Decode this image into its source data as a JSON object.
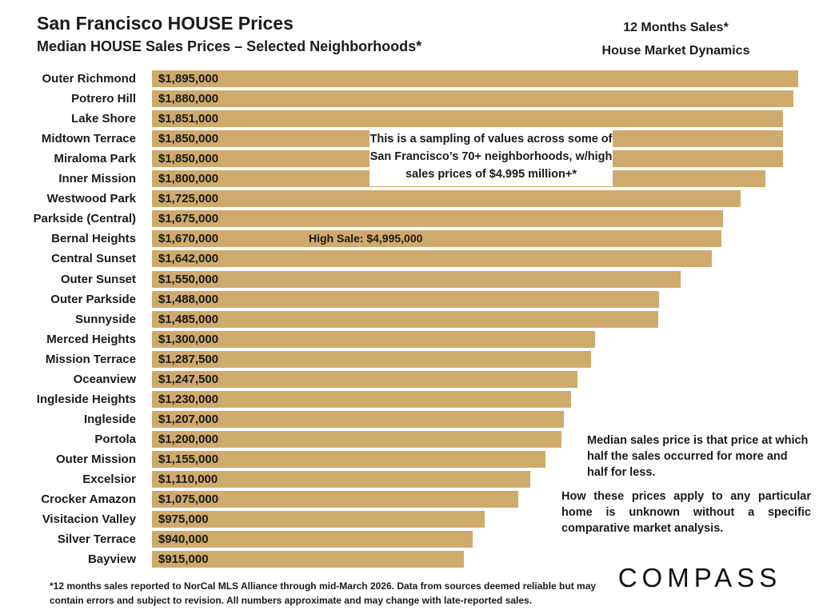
{
  "title": "San Francisco HOUSE Prices",
  "subtitle": "Median HOUSE Sales Prices – Selected Neighborhoods*",
  "side_title_line1": "12 Months Sales*",
  "side_title_line2": "House Market Dynamics",
  "callout": "This is a sampling of values across some of San Francisco’s 70+ neighborhoods, w/high sales prices of $4.995 million+*",
  "high_sale": "High Sale:  $4,995,000",
  "median_note": "Median sales price is that price at which half the sales occurred for more and half for less.",
  "analysis_note": "How these prices apply to any particular home is unknown without a specific comparative market analysis.",
  "footnote": "*12 months sales reported to NorCal MLS Alliance through mid-March 2026. Data from sources deemed reliable but may contain errors and subject to revision. All numbers approximate and may change with late-reported sales.",
  "logo": "COMPASS",
  "colors": {
    "bar": "#cfaa6d"
  },
  "chart_data": {
    "type": "bar",
    "orientation": "horizontal",
    "title": "Median HOUSE Sales Prices – Selected Neighborhoods*",
    "xlabel": "",
    "ylabel": "",
    "xlim": [
      0,
      1920000
    ],
    "categories": [
      "Outer Richmond",
      "Potrero Hill",
      "Lake Shore",
      "Midtown Terrace",
      "Miraloma Park",
      "Inner Mission",
      "Westwood Park",
      "Parkside (Central)",
      "Bernal Heights",
      "Central Sunset",
      "Outer Sunset",
      "Outer Parkside",
      "Sunnyside",
      "Merced Heights",
      "Mission Terrace",
      "Oceanview",
      "Ingleside Heights",
      "Ingleside",
      "Portola",
      "Outer Mission",
      "Excelsior",
      "Crocker Amazon",
      "Visitacion Valley",
      "Silver Terrace",
      "Bayview"
    ],
    "values": [
      1895000,
      1880000,
      1851000,
      1850000,
      1850000,
      1800000,
      1725000,
      1675000,
      1670000,
      1642000,
      1550000,
      1488000,
      1485000,
      1300000,
      1287500,
      1247500,
      1230000,
      1207000,
      1200000,
      1155000,
      1110000,
      1075000,
      975000,
      940000,
      915000
    ],
    "value_labels": [
      "$1,895,000",
      "$1,880,000",
      "$1,851,000",
      "$1,850,000",
      "$1,850,000",
      "$1,800,000",
      "$1,725,000",
      "$1,675,000",
      "$1,670,000",
      "$1,642,000",
      "$1,550,000",
      "$1,488,000",
      "$1,485,000",
      "$1,300,000",
      "$1,287,500",
      "$1,247,500",
      "$1,230,000",
      "$1,207,000",
      "$1,200,000",
      "$1,155,000",
      "$1,110,000",
      "$1,075,000",
      "$975,000",
      "$940,000",
      "$915,000"
    ]
  }
}
